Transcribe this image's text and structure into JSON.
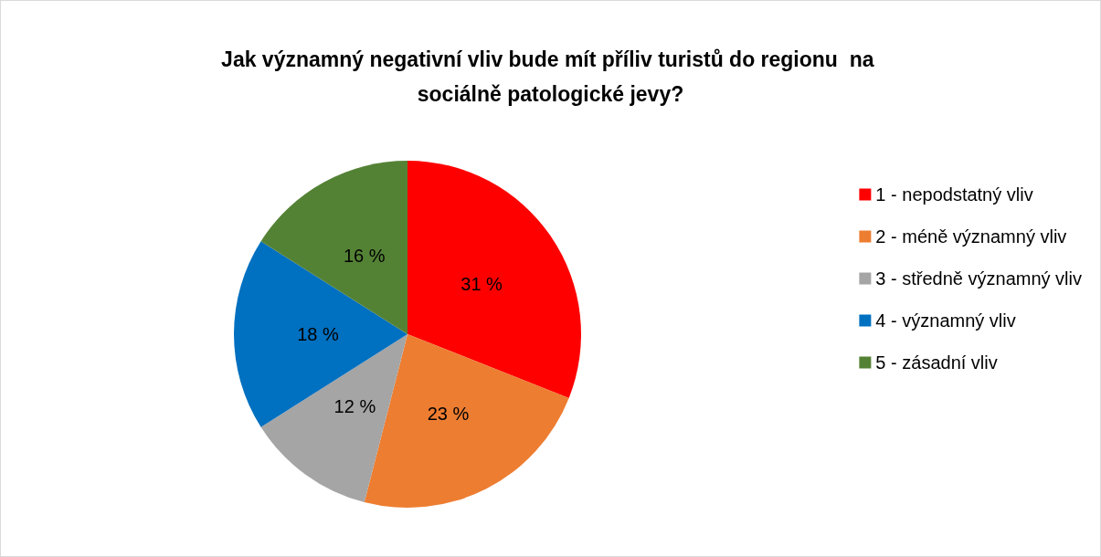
{
  "chart_data": {
    "type": "pie",
    "title": "Jak významný negativní vliv bude mít příliv turistů do regionu  na sociálně patologické jevy?",
    "categories": [
      "1 - nepodstatný vliv",
      "2 - méně významný vliv",
      "3 - středně významný vliv",
      "4 - významný vliv",
      "5 - zásadní vliv"
    ],
    "values": [
      31,
      23,
      12,
      18,
      16
    ],
    "colors": [
      "#ff0000",
      "#ed7d31",
      "#a5a5a5",
      "#0070c0",
      "#548235"
    ],
    "value_labels": [
      "31 %",
      "23 %",
      "12 %",
      "18 %",
      "16 %"
    ],
    "legend": "right"
  }
}
